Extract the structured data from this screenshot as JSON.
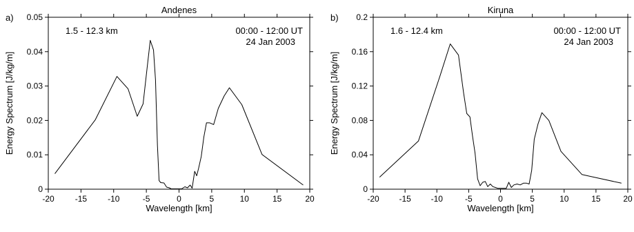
{
  "chart_data": [
    {
      "type": "line",
      "panel_label": "a)",
      "title": "Andenes",
      "xlabel": "Wavelength [km]",
      "ylabel": "Energy Spectrum [J/kg/m]",
      "xlim": [
        -20,
        20
      ],
      "ylim": [
        0,
        0.05
      ],
      "x_ticks": [
        -20,
        -15,
        -10,
        -5,
        0,
        5,
        10,
        15,
        20
      ],
      "y_ticks": [
        0,
        0.01,
        0.02,
        0.03,
        0.04,
        0.05
      ],
      "x_tick_labels": [
        "-20",
        "-15",
        "-10",
        "-5",
        "0",
        "5",
        "10",
        "15",
        "20"
      ],
      "y_tick_labels": [
        "0",
        "0.01",
        "0.02",
        "0.03",
        "0.04",
        "0.05"
      ],
      "annotation_left": "1.5 - 12.3 km",
      "annotation_right_1": "00:00 - 12:00 UT",
      "annotation_right_2": "24 Jan 2003",
      "series": [
        {
          "x": [
            -19,
            -12.8,
            -9.5,
            -7.8,
            -6.4,
            -5.5,
            -4.9,
            -4.4,
            -3.9,
            -3.6,
            -3.3,
            -3.05,
            -2.8,
            -2.3,
            -1.9,
            -1.5,
            -1.2,
            -0.8,
            -0.5,
            -0.1,
            0.4,
            0.9,
            1.3,
            1.7,
            2.0,
            2.4,
            2.7,
            3.0,
            3.4,
            3.8,
            4.2,
            4.7,
            5.3,
            6.0,
            6.9,
            7.7,
            9.6,
            12.7,
            19.0
          ],
          "y": [
            0.0045,
            0.0202,
            0.0328,
            0.0292,
            0.0212,
            0.0248,
            0.035,
            0.0433,
            0.0405,
            0.0318,
            0.0128,
            0.0025,
            0.0019,
            0.0018,
            0.0006,
            0.0004,
            0.0001,
            0.0001,
            0.0001,
            0.0001,
            0.0001,
            0.0007,
            0.0004,
            0.0012,
            0.0003,
            0.0052,
            0.0039,
            0.0061,
            0.0095,
            0.0152,
            0.0193,
            0.0193,
            0.0188,
            0.0235,
            0.0271,
            0.0295,
            0.0246,
            0.0101,
            0.0012
          ]
        }
      ]
    },
    {
      "type": "line",
      "panel_label": "b)",
      "title": "Kiruna",
      "xlabel": "Wavelength [km]",
      "ylabel": "Energy Spectrum [J/kg/m]",
      "xlim": [
        -20,
        20
      ],
      "ylim": [
        0,
        0.2
      ],
      "x_ticks": [
        -20,
        -15,
        -10,
        -5,
        0,
        5,
        10,
        15,
        20
      ],
      "y_ticks": [
        0,
        0.04,
        0.08,
        0.12,
        0.16,
        0.2
      ],
      "x_tick_labels": [
        "-20",
        "-15",
        "-10",
        "-5",
        "0",
        "5",
        "10",
        "15",
        "20"
      ],
      "y_tick_labels": [
        "0",
        "0.04",
        "0.08",
        "0.12",
        "0.16",
        "0.2"
      ],
      "annotation_left": "1.6 - 12.4 km",
      "annotation_right_1": "00:00 - 12:00 UT",
      "annotation_right_2": "24 Jan 2003",
      "series": [
        {
          "x": [
            -19,
            -12.9,
            -9.5,
            -7.9,
            -6.6,
            -5.8,
            -5.3,
            -4.8,
            -4.4,
            -4.0,
            -3.6,
            -3.2,
            -2.8,
            -2.4,
            -2.0,
            -1.6,
            -1.2,
            -0.8,
            -0.4,
            0.0,
            0.5,
            0.9,
            1.3,
            1.7,
            2.1,
            2.6,
            3.1,
            3.6,
            4.1,
            4.5,
            4.9,
            5.3,
            5.9,
            6.5,
            7.6,
            9.5,
            12.8,
            19.0
          ],
          "y": [
            0.014,
            0.056,
            0.132,
            0.169,
            0.156,
            0.112,
            0.088,
            0.084,
            0.062,
            0.042,
            0.012,
            0.004,
            0.008,
            0.009,
            0.003,
            0.006,
            0.003,
            0.002,
            0.001,
            0.001,
            0.001,
            0.001,
            0.008,
            0.002,
            0.005,
            0.006,
            0.005,
            0.007,
            0.007,
            0.006,
            0.022,
            0.058,
            0.076,
            0.089,
            0.08,
            0.044,
            0.017,
            0.007
          ]
        }
      ]
    }
  ]
}
